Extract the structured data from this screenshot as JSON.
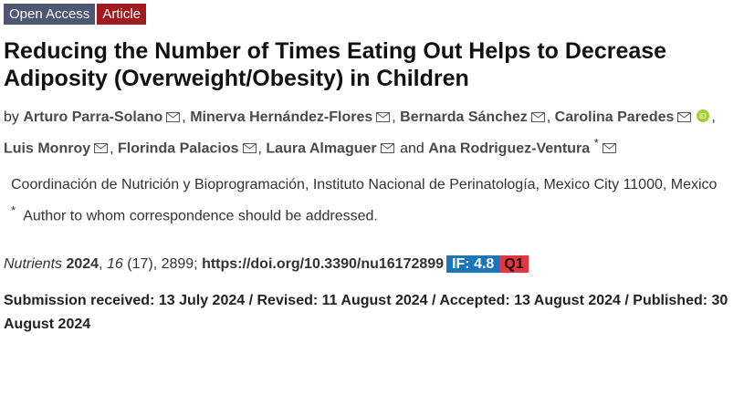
{
  "badges": [
    "Open Access",
    "Article"
  ],
  "title": "Reducing the Number of Times Eating Out Helps to Decrease Adiposity (Overweight/Obesity) in Children",
  "authors_prefix": "by",
  "authors": [
    {
      "name": "Arturo Parra-Solano",
      "separator": ","
    },
    {
      "name": "Minerva Hernández-Flores",
      "separator": ","
    },
    {
      "name": "Bernarda Sánchez",
      "separator": ","
    },
    {
      "name": "Carolina Paredes",
      "separator": ",",
      "orcid": true
    },
    {
      "name": "Luis Monroy",
      "separator": ","
    },
    {
      "name": "Florinda Palacios",
      "separator": ","
    },
    {
      "name": "Laura Almaguer",
      "separator": "and"
    },
    {
      "name": "Ana Rodriguez-Ventura",
      "mark": "*"
    }
  ],
  "affiliation": "Coordinación de Nutrición y Bioprogramación, Instituto Nacional de Perinatología, Mexico City 11000, Mexico",
  "note": {
    "mark": "*",
    "text": "Author to whom correspondence should be addressed."
  },
  "citation": [
    {
      "text": "Nutrients",
      "style": "italic"
    },
    {
      "text": "2024",
      "style": "bold"
    },
    {
      "text": ",",
      "style": "normal"
    },
    {
      "text": "16",
      "style": "italic"
    },
    {
      "text": "(17), 2899;",
      "style": "normal"
    },
    {
      "text": "https://doi.org/10.3390/nu16172899",
      "style": "bold"
    }
  ],
  "impact_factor": "IF: 4.8",
  "quartile": "Q1",
  "dates_separator": "/",
  "dates": [
    {
      "label": "Submission received:",
      "date": "13 July 2024"
    },
    {
      "label": "Revised:",
      "date": "11 August 2024"
    },
    {
      "label": "Accepted:",
      "date": "13 August 2024"
    },
    {
      "label": "Published:",
      "date": "30 August 2024"
    }
  ]
}
